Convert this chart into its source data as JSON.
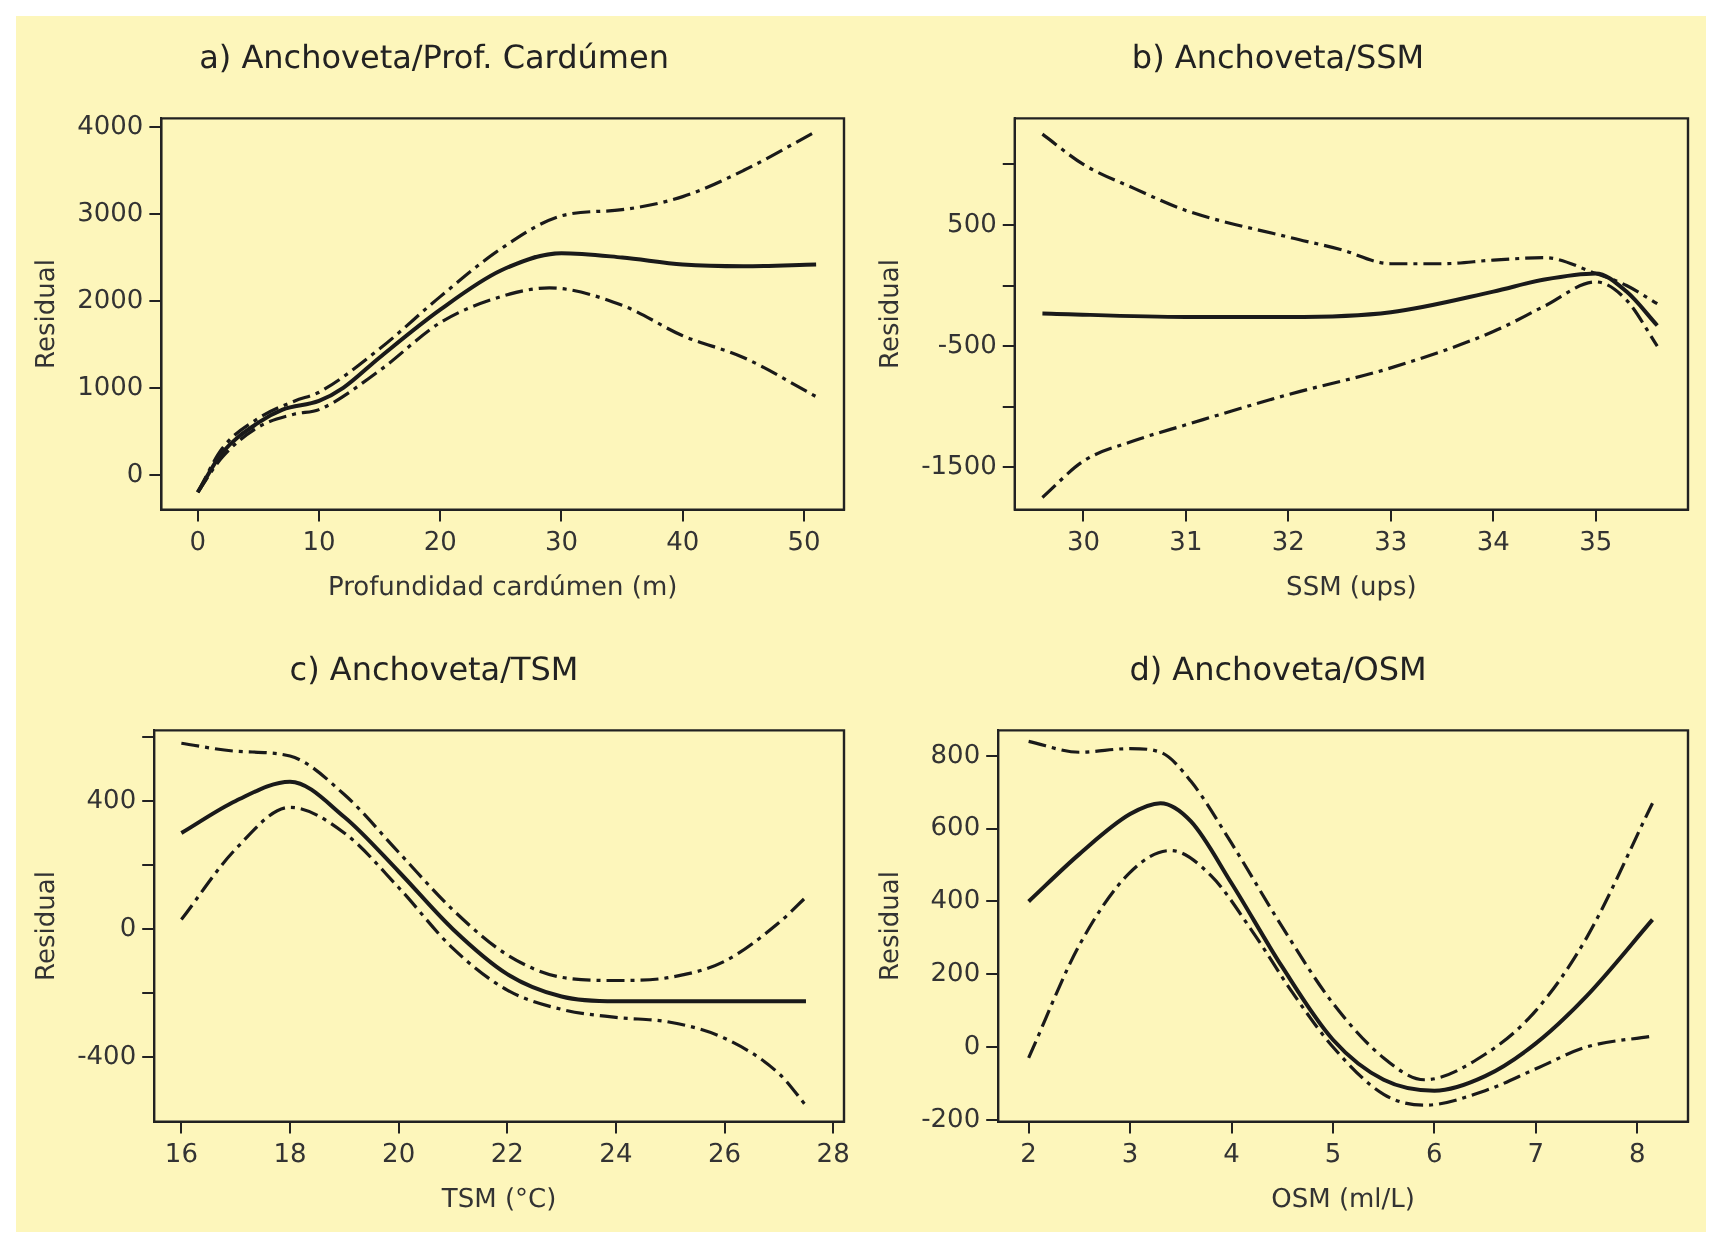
{
  "chart_data": [
    {
      "type": "line",
      "title": "a) Anchoveta/Prof. Cardúmen",
      "xlabel": "Profundidad cardúmen (m)",
      "ylabel": "Residual",
      "xlim": [
        -3,
        53.3
      ],
      "ylim": [
        -400,
        4100
      ],
      "xticks": [
        0,
        10,
        20,
        30,
        40,
        50
      ],
      "yticks": [
        0,
        1000,
        2000,
        3000,
        4000
      ],
      "grid": false,
      "legend": false,
      "series": [
        {
          "color": "#1a1a1a",
          "line_style": "solid",
          "x": [
            0,
            2,
            5,
            7,
            10,
            12,
            15,
            20,
            25,
            30,
            35,
            40,
            45,
            51
          ],
          "values": [
            -200,
            250,
            600,
            750,
            850,
            1000,
            1350,
            1900,
            2350,
            2550,
            2500,
            2420,
            2400,
            2420
          ]
        },
        {
          "color": "#1a1a1a",
          "line_style": "dashed",
          "x": [
            0,
            2,
            5,
            8,
            10,
            15,
            20,
            25,
            30,
            35,
            40,
            45,
            51
          ],
          "values": [
            -200,
            300,
            650,
            850,
            950,
            1450,
            2050,
            2600,
            2980,
            3050,
            3200,
            3500,
            3950
          ]
        },
        {
          "color": "#1a1a1a",
          "line_style": "dashed",
          "x": [
            0,
            2,
            5,
            8,
            10,
            15,
            20,
            25,
            29,
            35,
            40,
            45,
            51
          ],
          "values": [
            -200,
            200,
            550,
            700,
            750,
            1200,
            1750,
            2050,
            2150,
            1950,
            1600,
            1350,
            900
          ]
        }
      ]
    },
    {
      "type": "line",
      "title": "b) Anchoveta/SSM",
      "xlabel": "SSM (ups)",
      "ylabel": "Residual",
      "xlim": [
        29.33,
        35.9
      ],
      "ylim": [
        -1850,
        1380
      ],
      "xticks": [
        30,
        31,
        32,
        33,
        34,
        35
      ],
      "yticks": [
        -1500,
        {
          "value": -1000,
          "label": null
        },
        -500,
        {
          "value": 0,
          "label": null
        },
        500,
        {
          "value": 1000,
          "label": null
        }
      ],
      "grid": false,
      "legend": false,
      "series": [
        {
          "color": "#1a1a1a",
          "line_style": "solid",
          "x": [
            29.6,
            31,
            32,
            33,
            34,
            34.5,
            35,
            35.3,
            35.6
          ],
          "values": [
            -230,
            -260,
            -260,
            -220,
            -50,
            50,
            100,
            -50,
            -330
          ]
        },
        {
          "color": "#1a1a1a",
          "line_style": "dashed",
          "x": [
            29.6,
            30,
            30.5,
            31,
            32,
            32.5,
            33,
            33.5,
            34,
            34.5,
            35,
            35.3,
            35.6
          ],
          "values": [
            1250,
            1000,
            800,
            620,
            400,
            300,
            180,
            180,
            210,
            230,
            100,
            0,
            -150
          ]
        },
        {
          "color": "#1a1a1a",
          "line_style": "dashed",
          "x": [
            29.6,
            30,
            30.5,
            31,
            32,
            33,
            34,
            34.5,
            35,
            35.3,
            35.6
          ],
          "values": [
            -1750,
            -1450,
            -1280,
            -1150,
            -900,
            -680,
            -380,
            -170,
            30,
            -120,
            -500
          ]
        }
      ]
    },
    {
      "type": "line",
      "title": "c) Anchoveta/TSM",
      "xlabel": "TSM (°C)",
      "ylabel": "Residual",
      "xlim": [
        15.5,
        28.2
      ],
      "ylim": [
        -600,
        620
      ],
      "xticks": [
        16,
        18,
        20,
        22,
        24,
        26,
        28
      ],
      "yticks": [
        -400,
        {
          "value": -200,
          "label": null
        },
        0,
        {
          "value": 200,
          "label": null
        },
        400,
        {
          "value": 600,
          "label": null
        }
      ],
      "grid": false,
      "legend": false,
      "series": [
        {
          "color": "#1a1a1a",
          "line_style": "solid",
          "x": [
            16,
            17,
            18,
            19,
            20,
            21,
            22,
            23,
            24,
            26,
            27.5
          ],
          "values": [
            300,
            400,
            460,
            350,
            180,
            0,
            -140,
            -210,
            -225,
            -225,
            -225
          ]
        },
        {
          "color": "#1a1a1a",
          "line_style": "dashed",
          "x": [
            16,
            17,
            18,
            19,
            20,
            21,
            22,
            23,
            24,
            25,
            26,
            27,
            27.5
          ],
          "values": [
            580,
            555,
            540,
            420,
            240,
            60,
            -80,
            -150,
            -160,
            -150,
            -100,
            20,
            100
          ]
        },
        {
          "color": "#1a1a1a",
          "line_style": "dashed",
          "x": [
            16,
            17,
            18,
            19,
            20,
            21,
            22,
            23,
            24,
            25,
            26,
            27,
            27.5
          ],
          "values": [
            30,
            250,
            380,
            300,
            130,
            -60,
            -190,
            -250,
            -275,
            -290,
            -340,
            -450,
            -550
          ]
        }
      ]
    },
    {
      "type": "line",
      "title": "d) Anchoveta/OSM",
      "xlabel": "OSM (ml/L)",
      "ylabel": "Residual",
      "xlim": [
        1.7,
        8.5
      ],
      "ylim": [
        -205,
        870
      ],
      "xticks": [
        2,
        3,
        4,
        5,
        6,
        7,
        8
      ],
      "yticks": [
        -200,
        0,
        200,
        400,
        600,
        800
      ],
      "grid": false,
      "legend": false,
      "series": [
        {
          "color": "#1a1a1a",
          "line_style": "solid",
          "x": [
            2,
            2.5,
            3,
            3.3,
            3.6,
            4,
            4.5,
            5,
            5.5,
            6,
            6.5,
            7,
            7.5,
            8.15
          ],
          "values": [
            400,
            530,
            640,
            670,
            620,
            450,
            220,
            20,
            -90,
            -120,
            -80,
            10,
            140,
            350
          ]
        },
        {
          "color": "#1a1a1a",
          "line_style": "dashed",
          "x": [
            2,
            2.5,
            3,
            3.3,
            3.6,
            4,
            4.5,
            5,
            5.5,
            5.9,
            6.5,
            7,
            7.5,
            8.15
          ],
          "values": [
            840,
            810,
            820,
            810,
            730,
            560,
            330,
            120,
            -30,
            -90,
            -20,
            100,
            300,
            670
          ]
        },
        {
          "color": "#1a1a1a",
          "line_style": "dashed",
          "x": [
            2,
            2.5,
            3,
            3.4,
            3.8,
            4.2,
            4.6,
            5,
            5.5,
            5.9,
            6.5,
            7,
            7.5,
            8.15
          ],
          "values": [
            -30,
            280,
            480,
            540,
            470,
            320,
            150,
            0,
            -130,
            -160,
            -120,
            -60,
            0,
            30
          ]
        }
      ]
    }
  ]
}
